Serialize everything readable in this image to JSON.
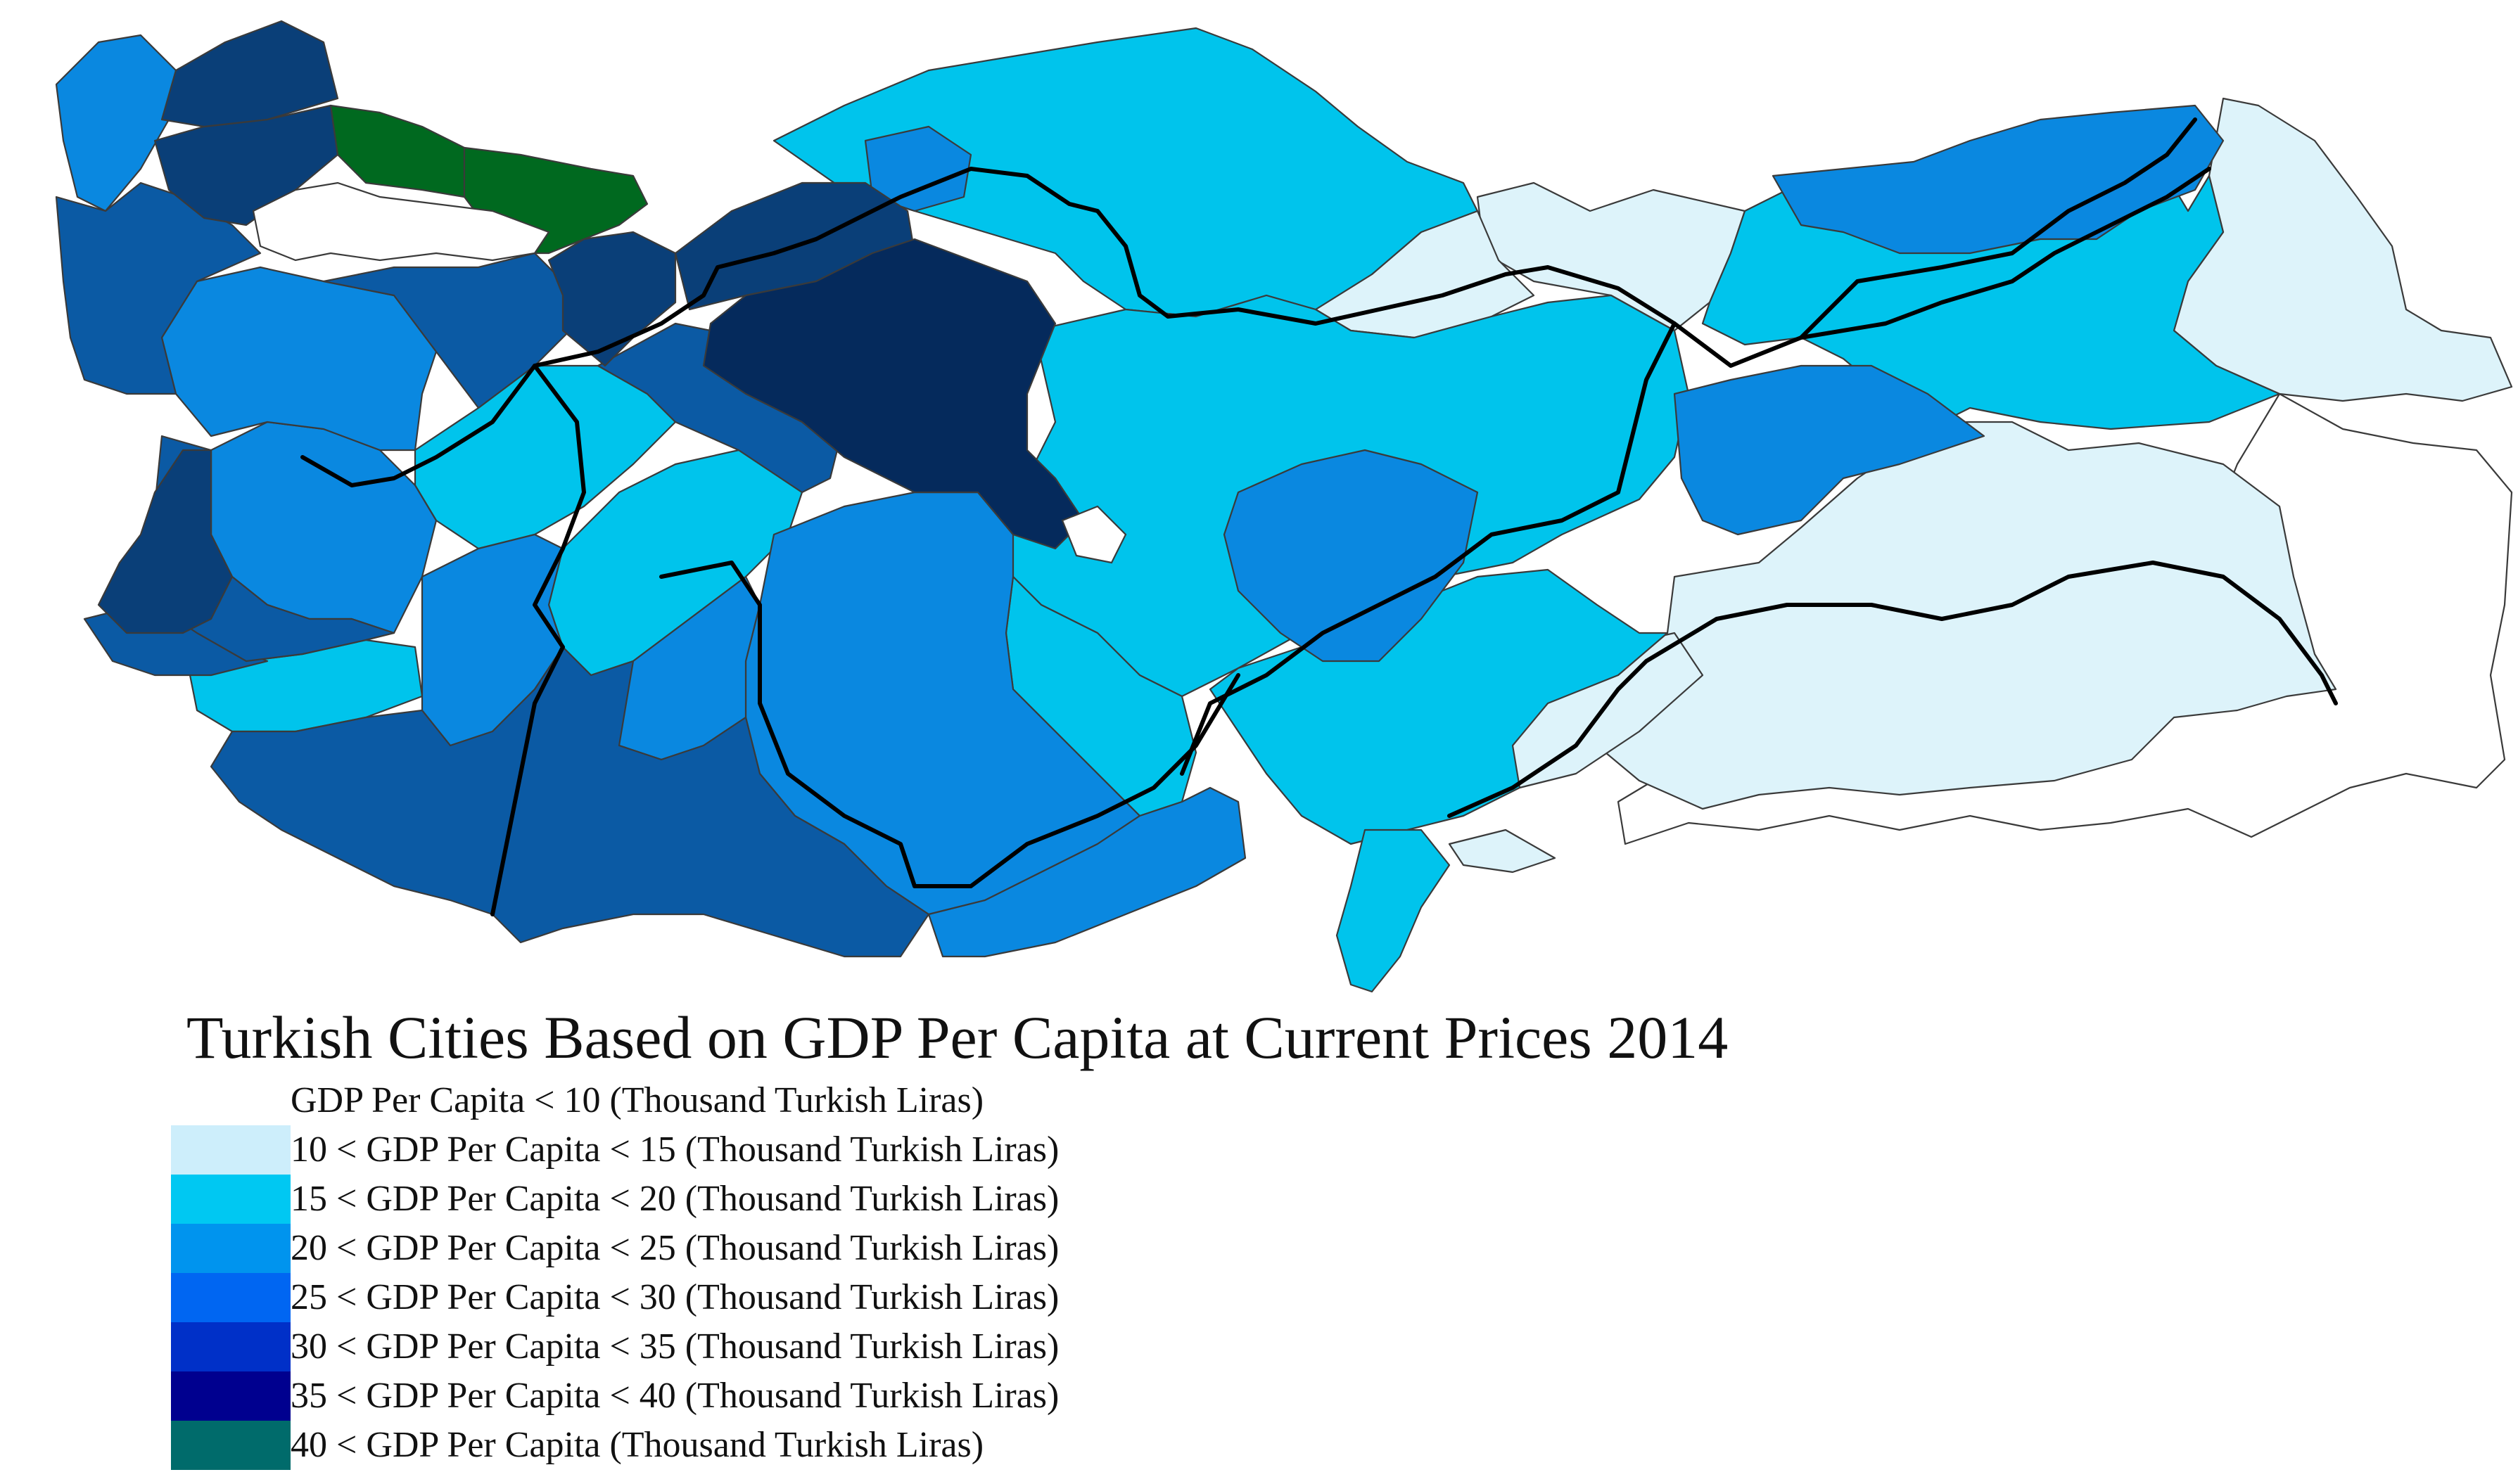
{
  "title": "Turkish Cities Based on GDP Per Capita at Current Prices 2014",
  "legend": {
    "items": [
      {
        "label": "GDP Per Capita < 10 (Thousand Turkish Liras)",
        "color": "#ffffff"
      },
      {
        "label": "10 < GDP Per Capita < 15 (Thousand Turkish Liras)",
        "color": "#cdeefb"
      },
      {
        "label": "15 < GDP Per Capita < 20 (Thousand Turkish Liras)",
        "color": "#00c8f2"
      },
      {
        "label": "20 < GDP Per Capita < 25 (Thousand Turkish Liras)",
        "color": "#0094ee"
      },
      {
        "label": "25 < GDP Per Capita < 30 (Thousand Turkish Liras)",
        "color": "#0066f2"
      },
      {
        "label": "30 < GDP Per Capita < 35 (Thousand Turkish Liras)",
        "color": "#0030c8"
      },
      {
        "label": "35 < GDP Per Capita < 40 (Thousand Turkish Liras)",
        "color": "#00008f"
      },
      {
        "label": "40 < GDP Per Capita (Thousand Turkish Liras)",
        "color": "#006b6b"
      }
    ]
  },
  "map_colors": {
    "lt10": "#ffffff",
    "c10_15": "#ddf3fa",
    "c15_20": "#00c4ec",
    "c20_25": "#0a88e0",
    "c25_30": "#0b5aa4",
    "c30_35": "#0a3f78",
    "c35_40": "#052a5c",
    "gt40": "#00691f"
  }
}
